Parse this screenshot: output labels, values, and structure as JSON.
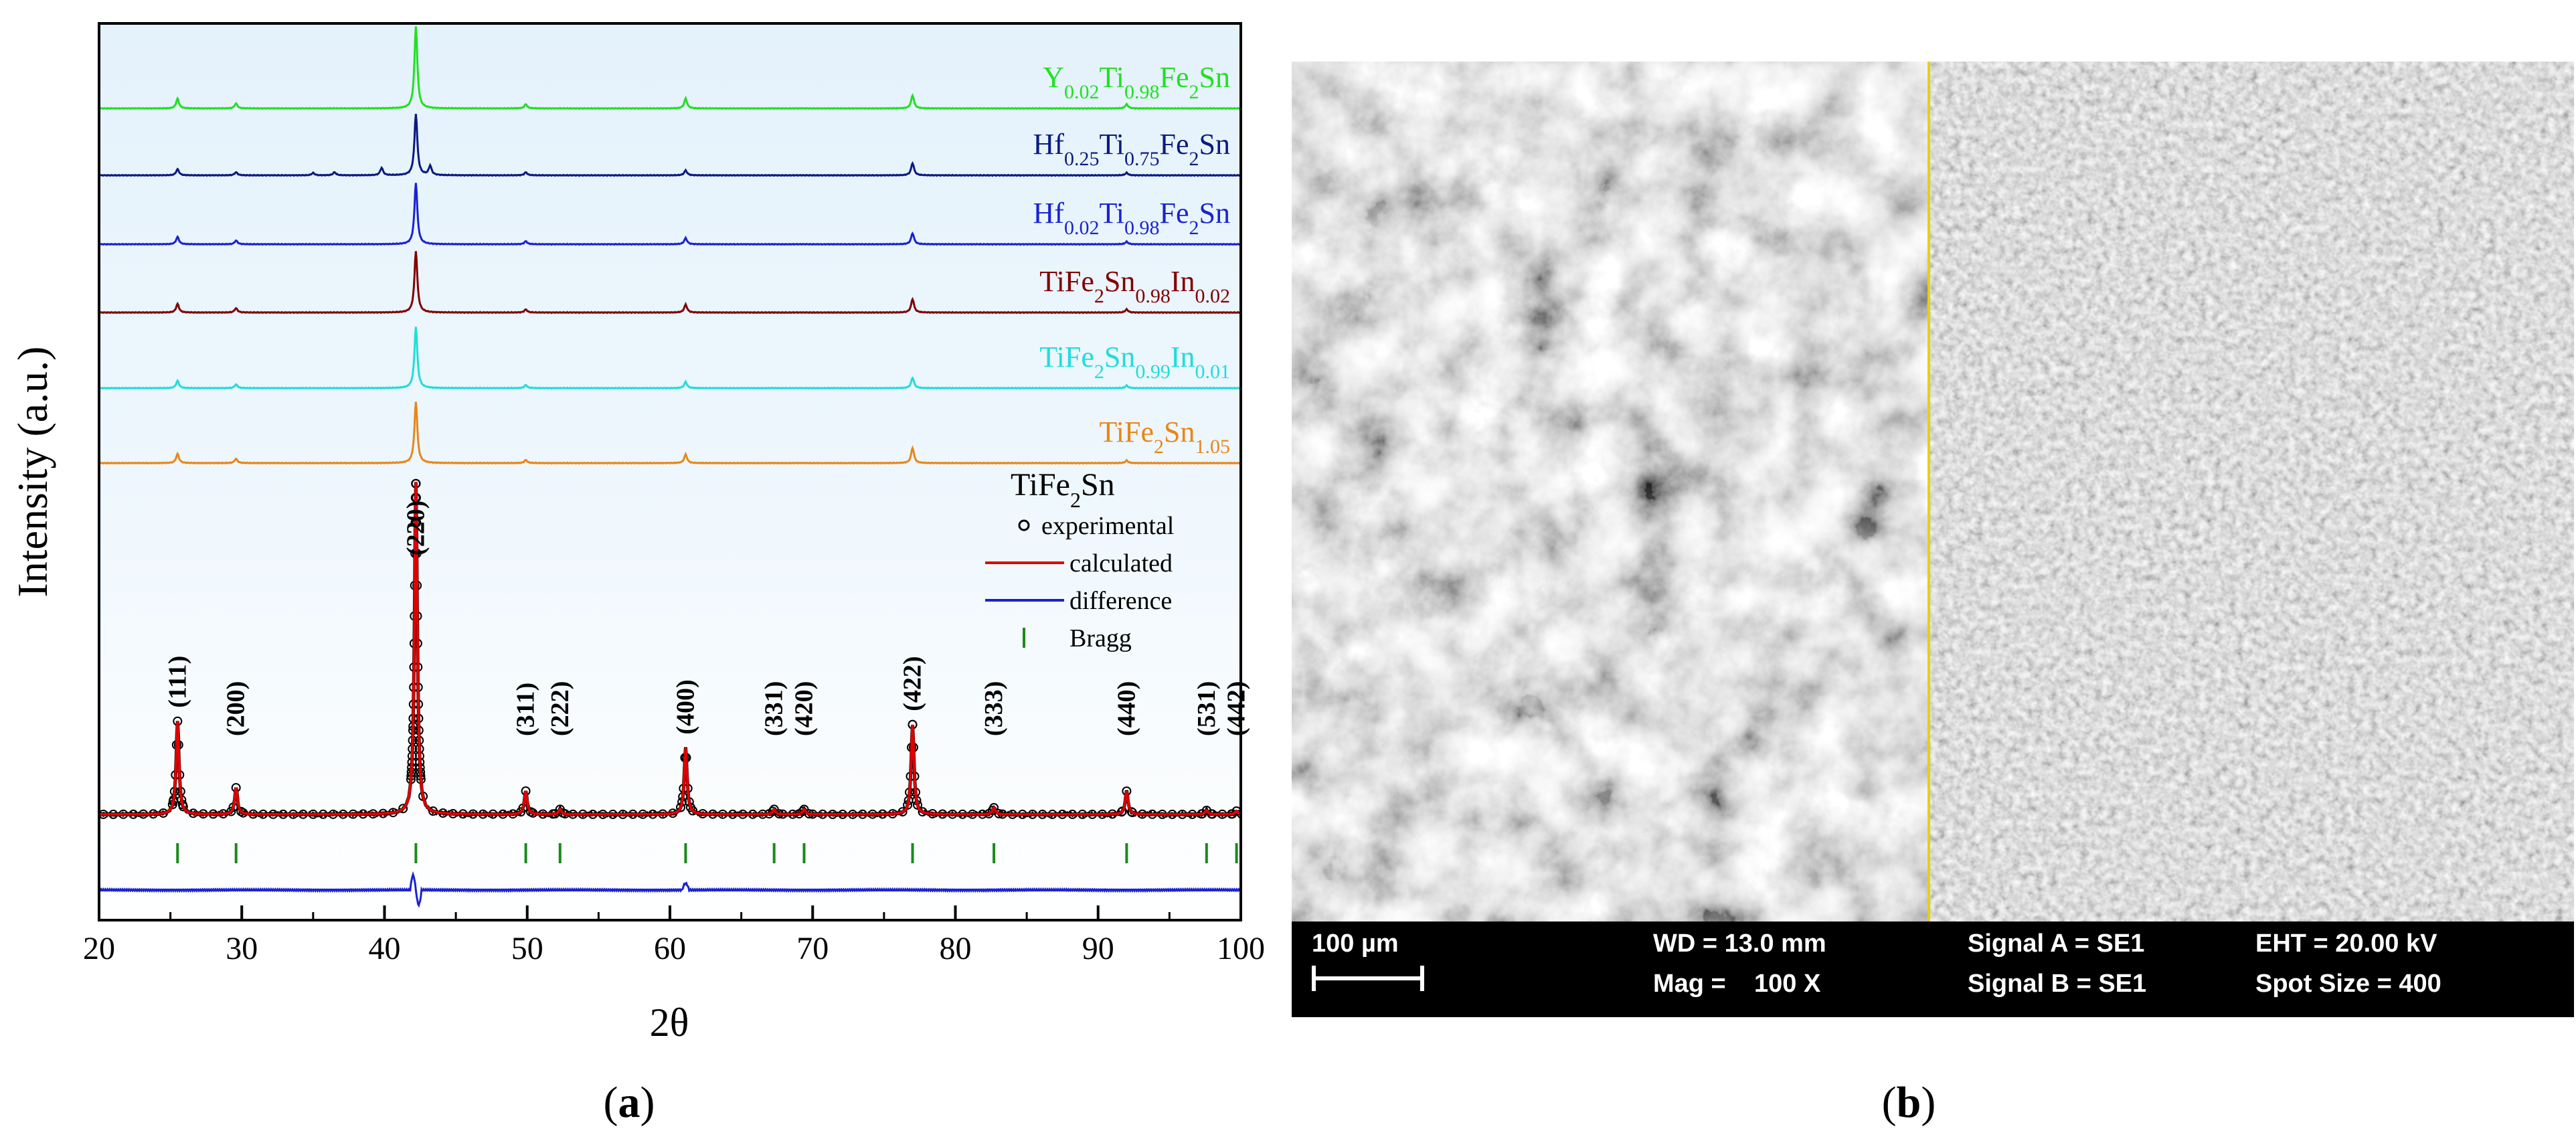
{
  "panel_labels": {
    "a": "a",
    "b": "b"
  },
  "chart_data": {
    "type": "line",
    "xlabel": "2θ",
    "ylabel": "Intensity (a.u.)",
    "xlim": [
      20,
      100
    ],
    "xticks": [
      20,
      30,
      40,
      50,
      60,
      70,
      80,
      90,
      100
    ],
    "grid": false,
    "legend_position": "right",
    "stacked_patterns": [
      {
        "name": "Y0.02Ti0.98Fe2Sn",
        "color": "#22e022",
        "peaks": [
          [
            25.5,
            0.12
          ],
          [
            29.6,
            0.06
          ],
          [
            42.2,
            1.0
          ],
          [
            49.9,
            0.05
          ],
          [
            61.1,
            0.12
          ],
          [
            77.0,
            0.16
          ],
          [
            92.0,
            0.05
          ]
        ]
      },
      {
        "name": "Hf0.25Ti0.75Fe2Sn",
        "color": "#0a1a80",
        "peaks": [
          [
            25.5,
            0.1
          ],
          [
            29.6,
            0.05
          ],
          [
            35.0,
            0.04
          ],
          [
            36.5,
            0.05
          ],
          [
            39.8,
            0.12
          ],
          [
            42.2,
            1.0
          ],
          [
            43.2,
            0.15
          ],
          [
            49.9,
            0.05
          ],
          [
            61.1,
            0.08
          ],
          [
            77.0,
            0.2
          ],
          [
            92.0,
            0.04
          ]
        ]
      },
      {
        "name": "Hf0.02Ti0.98Fe2Sn",
        "color": "#1a22d0",
        "peaks": [
          [
            25.5,
            0.12
          ],
          [
            29.6,
            0.06
          ],
          [
            42.2,
            1.0
          ],
          [
            49.9,
            0.05
          ],
          [
            61.1,
            0.1
          ],
          [
            77.0,
            0.18
          ],
          [
            92.0,
            0.04
          ]
        ]
      },
      {
        "name": "TiFe2Sn0.98In0.02",
        "color": "#800000",
        "peaks": [
          [
            25.5,
            0.14
          ],
          [
            29.6,
            0.07
          ],
          [
            42.2,
            1.0
          ],
          [
            49.9,
            0.05
          ],
          [
            61.1,
            0.13
          ],
          [
            77.0,
            0.22
          ],
          [
            92.0,
            0.05
          ]
        ]
      },
      {
        "name": "TiFe2Sn0.99In0.01",
        "color": "#22dcdc",
        "peaks": [
          [
            25.5,
            0.12
          ],
          [
            29.6,
            0.06
          ],
          [
            42.2,
            1.0
          ],
          [
            49.9,
            0.05
          ],
          [
            61.1,
            0.1
          ],
          [
            77.0,
            0.17
          ],
          [
            92.0,
            0.04
          ]
        ]
      },
      {
        "name": "TiFe2Sn1.05",
        "color": "#e8861a",
        "peaks": [
          [
            25.5,
            0.15
          ],
          [
            29.6,
            0.07
          ],
          [
            42.2,
            1.0
          ],
          [
            49.9,
            0.05
          ],
          [
            61.1,
            0.14
          ],
          [
            77.0,
            0.25
          ],
          [
            92.0,
            0.04
          ]
        ]
      }
    ],
    "label_parts": [
      [
        [
          "Y",
          ""
        ],
        [
          "0.02",
          "sub"
        ],
        [
          "Ti",
          ""
        ],
        [
          "0.98",
          "sub"
        ],
        [
          "Fe",
          ""
        ],
        [
          "2",
          "sub"
        ],
        [
          "Sn",
          ""
        ]
      ],
      [
        [
          "Hf",
          ""
        ],
        [
          "0.25",
          "sub"
        ],
        [
          "Ti",
          ""
        ],
        [
          "0.75",
          "sub"
        ],
        [
          "Fe",
          ""
        ],
        [
          "2",
          "sub"
        ],
        [
          "Sn",
          ""
        ]
      ],
      [
        [
          "Hf",
          ""
        ],
        [
          "0.02",
          "sub"
        ],
        [
          "Ti",
          ""
        ],
        [
          "0.98",
          "sub"
        ],
        [
          "Fe",
          ""
        ],
        [
          "2",
          "sub"
        ],
        [
          "Sn",
          ""
        ]
      ],
      [
        [
          "TiFe",
          ""
        ],
        [
          "2",
          "sub"
        ],
        [
          "Sn",
          ""
        ],
        [
          "0.98",
          "sub"
        ],
        [
          "In",
          ""
        ],
        [
          "0.02",
          "sub"
        ]
      ],
      [
        [
          "TiFe",
          ""
        ],
        [
          "2",
          "sub"
        ],
        [
          "Sn",
          ""
        ],
        [
          "0.99",
          "sub"
        ],
        [
          "In",
          ""
        ],
        [
          "0.01",
          "sub"
        ]
      ],
      [
        [
          "TiFe",
          ""
        ],
        [
          "2",
          "sub"
        ],
        [
          "Sn",
          ""
        ],
        [
          "1.05",
          "sub"
        ]
      ]
    ],
    "refinement": {
      "compound_parts": [
        [
          "TiFe",
          ""
        ],
        [
          "2",
          "sub"
        ],
        [
          "Sn",
          ""
        ]
      ],
      "peaks": [
        [
          25.5,
          0.28
        ],
        [
          29.6,
          0.08
        ],
        [
          42.2,
          1.0
        ],
        [
          49.9,
          0.07
        ],
        [
          52.3,
          0.015
        ],
        [
          61.1,
          0.2
        ],
        [
          67.3,
          0.015
        ],
        [
          69.4,
          0.015
        ],
        [
          77.0,
          0.27
        ],
        [
          82.7,
          0.02
        ],
        [
          92.0,
          0.07
        ],
        [
          97.6,
          0.012
        ],
        [
          99.7,
          0.01
        ]
      ],
      "bragg_positions": [
        25.5,
        29.6,
        42.2,
        49.9,
        52.3,
        61.1,
        67.3,
        69.4,
        77.0,
        82.7,
        92.0,
        97.6,
        99.7
      ],
      "hkl_labels": [
        {
          "x": 25.5,
          "label": "(111)"
        },
        {
          "x": 29.6,
          "label": "(200)"
        },
        {
          "x": 42.2,
          "label": "(220)"
        },
        {
          "x": 49.9,
          "label": "(311)"
        },
        {
          "x": 52.3,
          "label": "(222)"
        },
        {
          "x": 61.1,
          "label": "(400)"
        },
        {
          "x": 67.3,
          "label": "(331)"
        },
        {
          "x": 69.4,
          "label": "(420)"
        },
        {
          "x": 77.0,
          "label": "(422)"
        },
        {
          "x": 82.7,
          "label": "(333)"
        },
        {
          "x": 92.0,
          "label": "(440)"
        },
        {
          "x": 97.6,
          "label": "(531)"
        },
        {
          "x": 99.7,
          "label": "(442)"
        }
      ],
      "legend": [
        {
          "label": "experimental",
          "marker": "open-circle",
          "color": "#000000"
        },
        {
          "label": "calculated",
          "marker": "line",
          "color": "#e00000"
        },
        {
          "label": "difference",
          "marker": "line",
          "color": "#1a22d0"
        },
        {
          "label": "Bragg",
          "marker": "tick",
          "color": "#1a8a1a"
        }
      ],
      "colors": {
        "calculated": "#e00000",
        "difference": "#1a22d0",
        "bragg": "#1a8a1a",
        "experimental": "#000000"
      }
    }
  },
  "sem": {
    "scale_bar": "100 µm",
    "wd": "WD = 13.0 mm",
    "mag": "Mag =    100 X",
    "signal_a": "Signal A = SE1",
    "signal_b": "Signal B = SE1",
    "eht": "EHT = 20.00 kV",
    "spot_size": "Spot Size = 400"
  }
}
